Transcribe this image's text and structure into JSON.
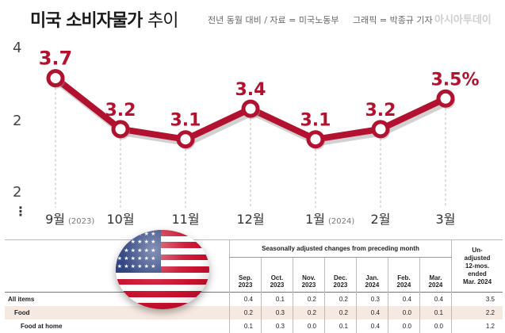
{
  "header": {
    "title_bold": "미국 소비자물가",
    "title_light": "추이",
    "source": "전년 동월 대비 / 자료 = 미국노동부",
    "credit": "그래픽 = 박종규 기자",
    "brand": "아시아투데이"
  },
  "y_ticks": [
    "4",
    "2",
    "2"
  ],
  "y_break_marker": "⋮",
  "colors": {
    "line": "#b2122f",
    "value_label": "#b2122f",
    "shadow": "#999999"
  },
  "chart_data": {
    "type": "line",
    "title": "미국 소비자물가 추이",
    "categories": [
      "9월",
      "10월",
      "11월",
      "12월",
      "1월",
      "2월",
      "3월"
    ],
    "year_notes": [
      "(2023)",
      "",
      "",
      "",
      "(2024)",
      "",
      ""
    ],
    "values": [
      3.7,
      3.2,
      3.1,
      3.4,
      3.1,
      3.2,
      3.5
    ],
    "value_labels": [
      "3.7",
      "3.2",
      "3.1",
      "3.4",
      "3.1",
      "3.2",
      "3.5%"
    ],
    "ylim": [
      2,
      4
    ],
    "grid": false,
    "drop_lines": true
  },
  "table": {
    "group_header": "Seasonally adjusted changes from preceding month",
    "unadjusted_header": [
      "Un-",
      "adjusted",
      "12-mos.",
      "ended",
      "Mar. 2024"
    ],
    "columns": [
      [
        "Sep.",
        "2023"
      ],
      [
        "Oct.",
        "2023"
      ],
      [
        "Nov.",
        "2023"
      ],
      [
        "Dec.",
        "2023"
      ],
      [
        "Jan.",
        "2024"
      ],
      [
        "Feb.",
        "2024"
      ],
      [
        "Mar.",
        "2024"
      ]
    ],
    "rows": [
      {
        "name": "All items",
        "values": [
          "0.4",
          "0.1",
          "0.2",
          "0.2",
          "0.3",
          "0.4",
          "0.4"
        ],
        "unadjusted": "3.5"
      },
      {
        "name": "Food",
        "values": [
          "0.2",
          "0.3",
          "0.2",
          "0.2",
          "0.4",
          "0.0",
          "0.1"
        ],
        "unadjusted": "2.2"
      },
      {
        "name": "Food at home",
        "values": [
          "0.1",
          "0.3",
          "0.0",
          "0.1",
          "0.4",
          "0.0",
          "0.0"
        ],
        "unadjusted": "1.2"
      }
    ]
  }
}
